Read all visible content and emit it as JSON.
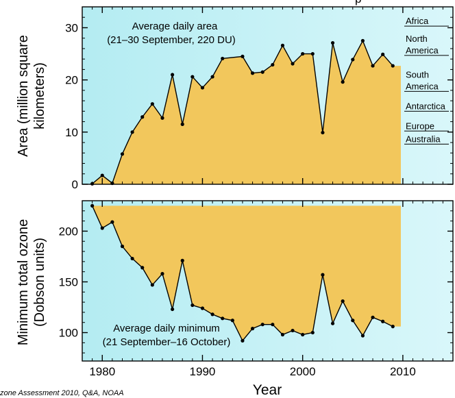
{
  "chart_data": [
    {
      "type": "area",
      "title": "",
      "xlabel": "Year",
      "ylabel": "Area (million square kilometers)",
      "ylabel_lines": [
        "Area (million square",
        "kilometers)"
      ],
      "annotation_lines": [
        "Average daily area",
        "(21–30 September, 220 DU)"
      ],
      "xlim": [
        1978,
        2015
      ],
      "ylim": [
        0,
        34
      ],
      "xticks": [
        1980,
        1990,
        2000,
        2010
      ],
      "yticks": [
        0,
        10,
        20,
        30
      ],
      "x": [
        1979,
        1980,
        1981,
        1982,
        1983,
        1984,
        1985,
        1986,
        1987,
        1988,
        1989,
        1990,
        1991,
        1992,
        1994,
        1995,
        1996,
        1997,
        1998,
        1999,
        2000,
        2001,
        2002,
        2003,
        2004,
        2005,
        2006,
        2007,
        2008,
        2009
      ],
      "y": [
        0.1,
        1.7,
        0.2,
        5.8,
        10.0,
        12.9,
        15.4,
        12.7,
        21.0,
        11.5,
        20.6,
        18.5,
        20.6,
        24.1,
        24.5,
        21.3,
        21.5,
        22.9,
        26.6,
        23.1,
        25.0,
        25.0,
        9.9,
        27.1,
        19.6,
        23.9,
        27.5,
        22.7,
        24.9,
        22.7
      ],
      "fill_to_x": 2009.8,
      "fill_color": "#f2c75c",
      "background_color": "#bff0f5",
      "reference_continents": [
        {
          "name": "Africa",
          "value": 30.3
        },
        {
          "name": "North America",
          "value": 24.7
        },
        {
          "name": "South America",
          "value": 17.8
        },
        {
          "name": "Antarctica",
          "value": 14.0
        },
        {
          "name": "Europe",
          "value": 10.2
        },
        {
          "name": "Australia",
          "value": 7.7
        }
      ],
      "reference_line_lengths": {
        "Africa": 1,
        "North America": 1,
        "South America": 1,
        "Antarctica": 1,
        "Europe": 1,
        "Australia": 1
      }
    },
    {
      "type": "area",
      "title": "",
      "xlabel": "Year",
      "ylabel": "Minimum total ozone (Dobson units)",
      "ylabel_lines": [
        "Minimum total ozone",
        "(Dobson units)"
      ],
      "annotation_lines": [
        "Average daily minimum",
        "(21 September–16 October)"
      ],
      "xlim": [
        1978,
        2015
      ],
      "ylim": [
        72,
        230
      ],
      "xticks": [
        1980,
        1990,
        2000,
        2010
      ],
      "yticks": [
        100,
        150,
        200
      ],
      "x": [
        1979,
        1980,
        1981,
        1982,
        1983,
        1984,
        1985,
        1986,
        1987,
        1988,
        1989,
        1990,
        1991,
        1992,
        1993,
        1994,
        1995,
        1996,
        1997,
        1998,
        1999,
        2000,
        2001,
        2002,
        2003,
        2004,
        2005,
        2006,
        2007,
        2008,
        2009
      ],
      "y": [
        225,
        203,
        209,
        185,
        173,
        164,
        147,
        158,
        123,
        171,
        127,
        124,
        118,
        114,
        112,
        92,
        104,
        108,
        108,
        98,
        102,
        98,
        100,
        157,
        109,
        131,
        112,
        97,
        115,
        111,
        106
      ],
      "fill_top": 225,
      "fill_to_x": 2009.8,
      "fill_color": "#f2c75c",
      "background_color": "#bff0f5"
    }
  ],
  "credit": "zone Assessment 2010, Q&A, NOAA",
  "partial_title": "p"
}
